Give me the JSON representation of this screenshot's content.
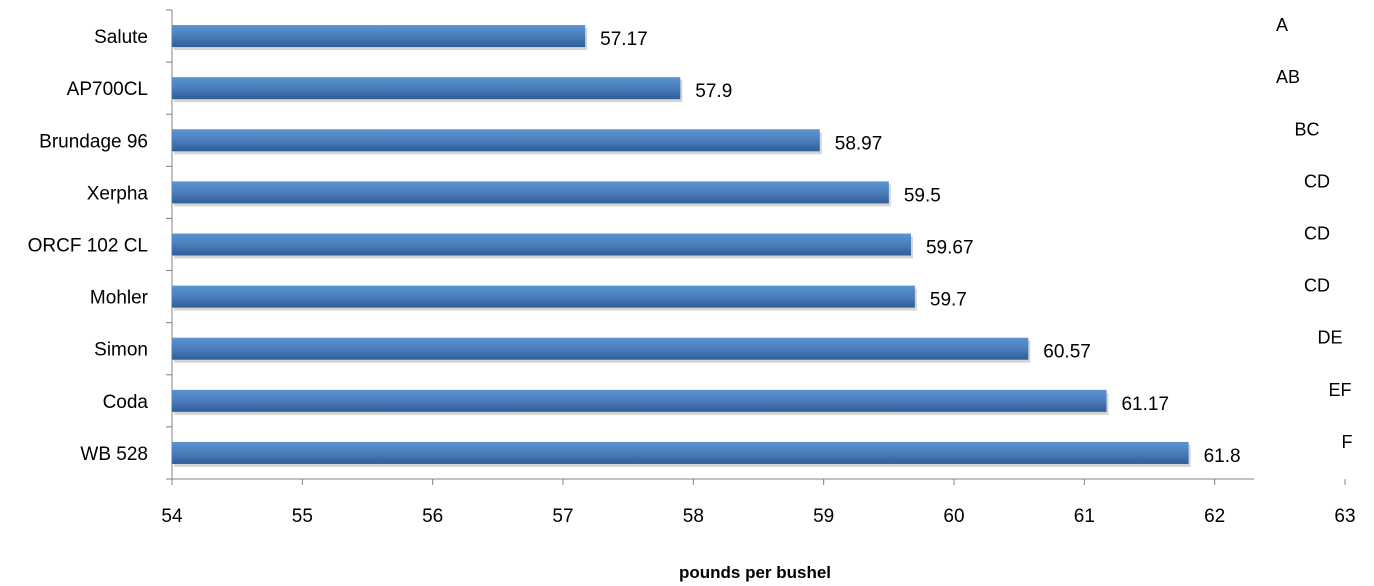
{
  "chart_data": {
    "type": "bar",
    "orientation": "horizontal",
    "categories": [
      "Salute",
      "AP700CL",
      "Brundage 96",
      "Xerpha",
      "ORCF 102 CL",
      "Mohler",
      "Simon",
      "Coda",
      "WB 528"
    ],
    "values": [
      57.17,
      57.9,
      58.97,
      59.5,
      59.67,
      59.7,
      60.57,
      61.17,
      61.8
    ],
    "value_labels": [
      "57.17",
      "57.9",
      "58.97",
      "59.5",
      "59.67",
      "59.7",
      "60.57",
      "61.17",
      "61.8"
    ],
    "significance_letters": [
      "A",
      "AB",
      "BC",
      "CD",
      "CD",
      "CD",
      "DE",
      "EF",
      "F"
    ],
    "xlabel": "pounds per bushel",
    "ylabel": "",
    "title": "",
    "xlim": [
      54,
      63
    ],
    "xticks": [
      "54",
      "55",
      "56",
      "57",
      "58",
      "59",
      "60",
      "61",
      "62",
      "63"
    ],
    "grid": false,
    "legend": "none",
    "bar_color": "#4a7ebb",
    "bar_color_light": "#5b93d3",
    "bar_color_dark": "#2f5d97"
  }
}
